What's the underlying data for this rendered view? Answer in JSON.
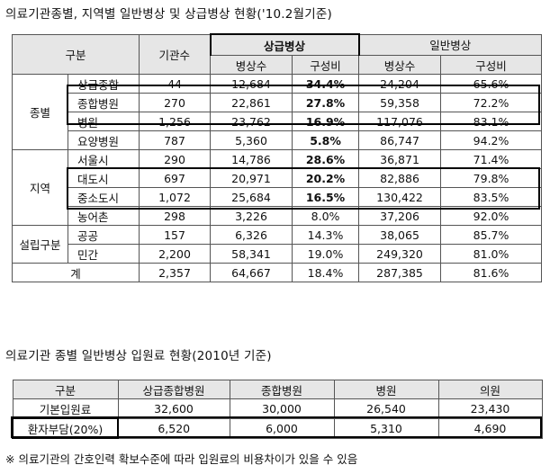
{
  "table1": {
    "title": "의료기관종별, 지역별 일반병상 및 상급병상 현황('10.2월기준)",
    "headers": {
      "category": "구분",
      "institutions": "기관수",
      "upper_bed": "상급병상",
      "general_bed": "일반병상",
      "bed_count": "병상수",
      "ratio": "구성비"
    },
    "groups": {
      "type": "종별",
      "region": "지역",
      "ownership": "설립구분"
    },
    "rows": [
      {
        "sub": "상급종합",
        "inst": "44",
        "ub": "12,684",
        "ur": "34.4%",
        "gb": "24,204",
        "gr": "65.6%"
      },
      {
        "sub": "종합병원",
        "inst": "270",
        "ub": "22,861",
        "ur": "27.8%",
        "gb": "59,358",
        "gr": "72.2%"
      },
      {
        "sub": "병원",
        "inst": "1,256",
        "ub": "23,762",
        "ur": "16.9%",
        "gb": "117,076",
        "gr": "83.1%"
      },
      {
        "sub": "요양병원",
        "inst": "787",
        "ub": "5,360",
        "ur": "5.8%",
        "gb": "86,747",
        "gr": "94.2%"
      },
      {
        "sub": "서울시",
        "inst": "290",
        "ub": "14,786",
        "ur": "28.6%",
        "gb": "36,871",
        "gr": "71.4%"
      },
      {
        "sub": "대도시",
        "inst": "697",
        "ub": "20,971",
        "ur": "20.2%",
        "gb": "82,886",
        "gr": "79.8%"
      },
      {
        "sub": "중소도시",
        "inst": "1,072",
        "ub": "25,684",
        "ur": "16.5%",
        "gb": "130,422",
        "gr": "83.5%"
      },
      {
        "sub": "농어촌",
        "inst": "298",
        "ub": "3,226",
        "ur": "8.0%",
        "gb": "37,206",
        "gr": "92.0%"
      },
      {
        "sub": "공공",
        "inst": "157",
        "ub": "6,326",
        "ur": "14.3%",
        "gb": "38,065",
        "gr": "85.7%"
      },
      {
        "sub": "민간",
        "inst": "2,200",
        "ub": "58,341",
        "ur": "19.0%",
        "gb": "249,320",
        "gr": "81.0%"
      }
    ],
    "total": {
      "label": "계",
      "inst": "2,357",
      "ub": "64,667",
      "ur": "18.4%",
      "gb": "287,385",
      "gr": "81.6%"
    }
  },
  "table2": {
    "title": "의료기관 종별 일반병상 입원료 현황(2010년 기준)",
    "headers": [
      "구분",
      "상급종합병원",
      "종합병원",
      "병원",
      "의원"
    ],
    "rows": [
      [
        "기본입원료",
        "32,600",
        "30,000",
        "26,540",
        "23,430"
      ],
      [
        "환자부담(20%)",
        "6,520",
        "6,000",
        "5,310",
        "4,690"
      ]
    ]
  },
  "note": "※ 의료기관의 간호인력 확보수준에 따라 입원료의 비용차이가 있을 수 있음"
}
